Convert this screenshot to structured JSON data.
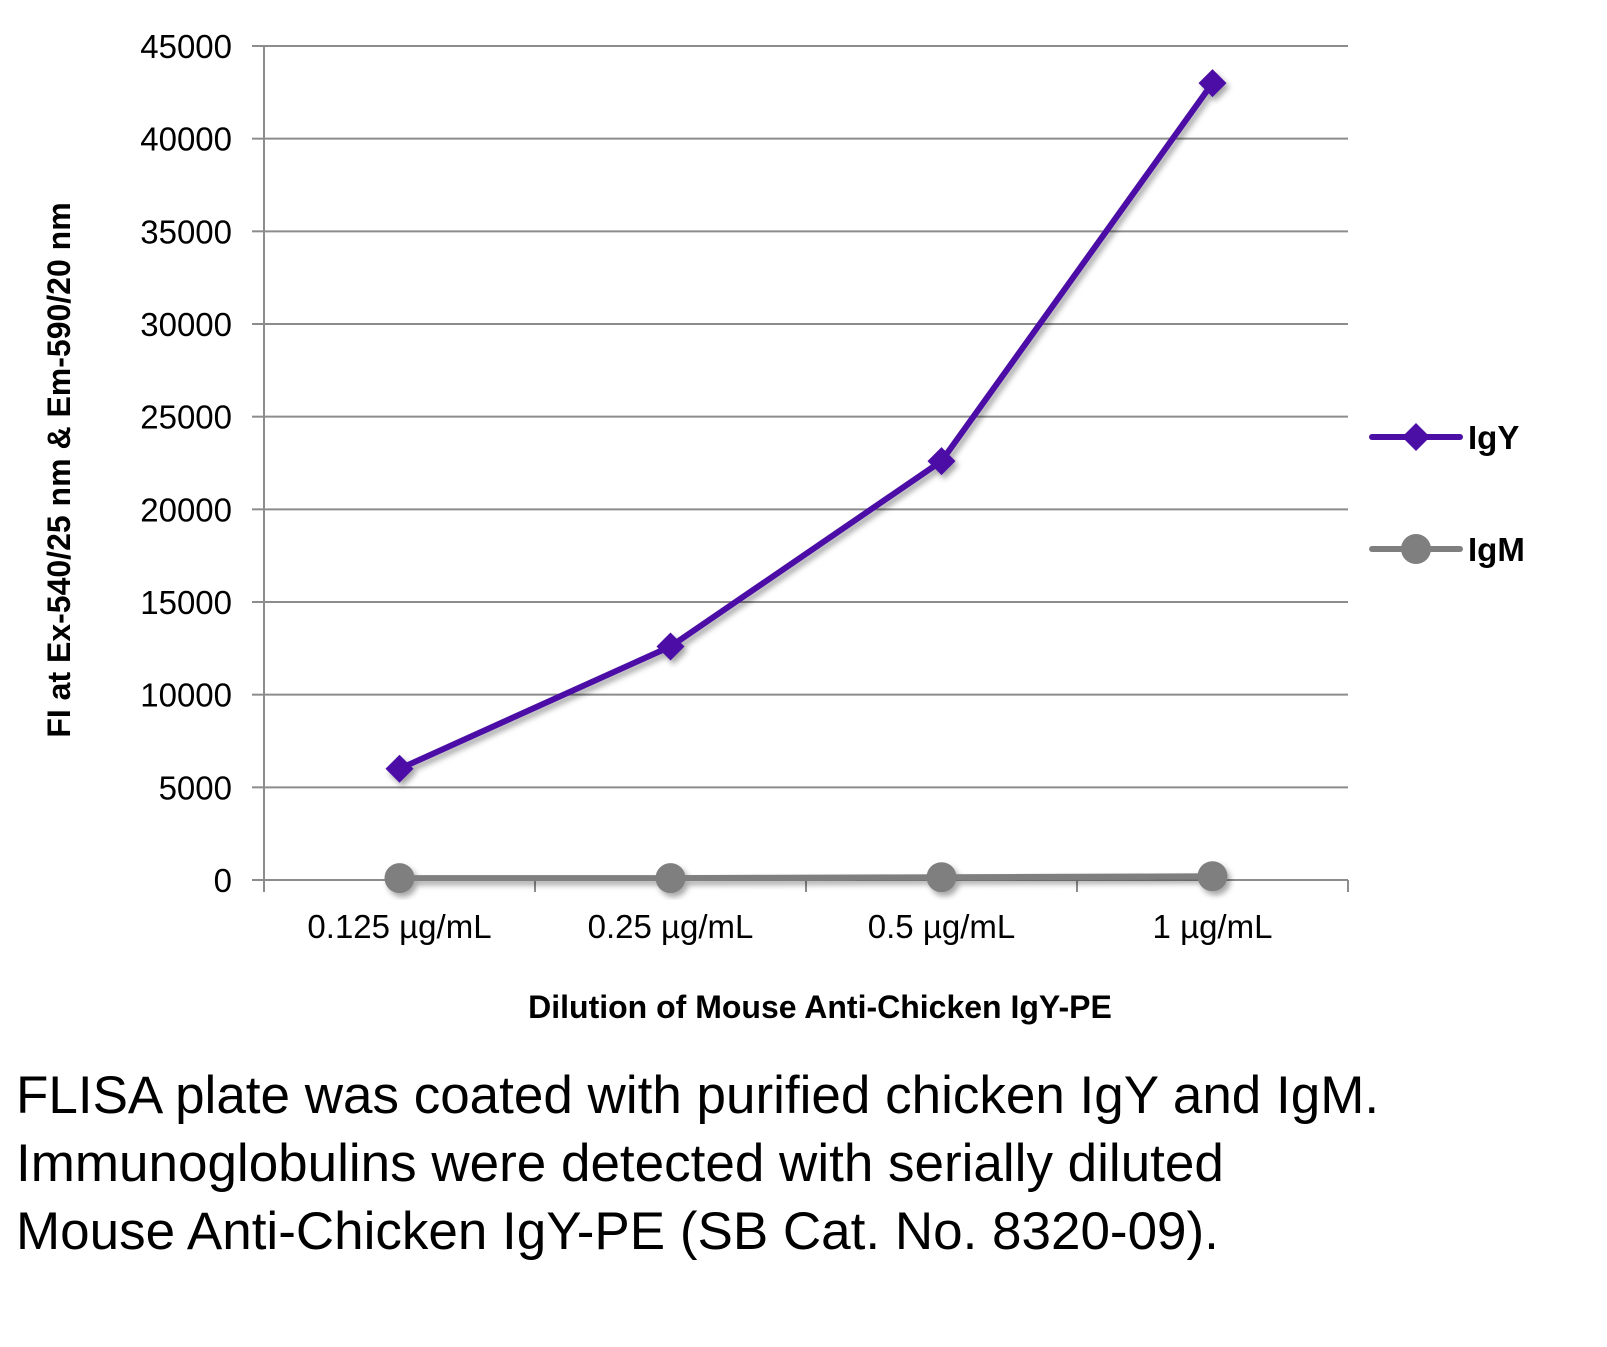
{
  "chart_data": {
    "type": "line",
    "title": "",
    "xlabel": "Dilution of Mouse Anti-Chicken IgY-PE",
    "ylabel": "FI at Ex-540/25 nm & Em-590/20 nm",
    "categories": [
      "0.125 µg/mL",
      "0.25 µg/mL",
      "0.5 µg/mL",
      "1 µg/mL"
    ],
    "ylim": [
      0,
      45000
    ],
    "yticks": [
      0,
      5000,
      10000,
      15000,
      20000,
      25000,
      30000,
      35000,
      40000,
      45000
    ],
    "grid": true,
    "legend_position": "right",
    "series": [
      {
        "name": "IgY",
        "values": [
          6000,
          12600,
          22600,
          43000
        ],
        "color": "#4B0FA6",
        "marker": "diamond"
      },
      {
        "name": "IgM",
        "values": [
          100,
          100,
          150,
          200
        ],
        "color": "#7F7F7F",
        "marker": "circle"
      }
    ]
  },
  "caption": "FLISA plate was coated with purified chicken IgY and IgM.  Immunoglobulins were detected with serially diluted Mouse Anti-Chicken IgY-PE (SB Cat. No. 8320-09)."
}
